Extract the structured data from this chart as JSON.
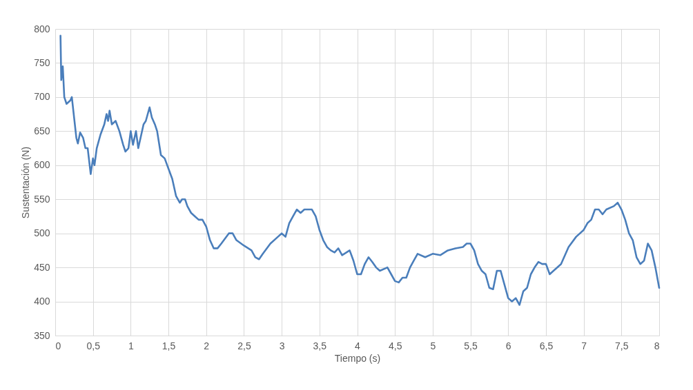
{
  "chart_data": {
    "type": "line",
    "xlabel": "Tiempo (s)",
    "ylabel": "Sustentación (N)",
    "xlim": [
      0,
      8
    ],
    "ylim": [
      350,
      800
    ],
    "xticks": [
      0,
      {
        "value": 0.5,
        "label": "0,5"
      },
      1,
      {
        "value": 1.5,
        "label": "1,5"
      },
      2,
      {
        "value": 2.5,
        "label": "2,5"
      },
      3,
      {
        "value": 3.5,
        "label": "3,5"
      },
      4,
      {
        "value": 4.5,
        "label": "4,5"
      },
      5,
      {
        "value": 5.5,
        "label": "5,5"
      },
      6,
      {
        "value": 6.5,
        "label": "6,5"
      },
      7,
      {
        "value": 7.5,
        "label": "7,5"
      },
      8
    ],
    "yticks": [
      350,
      400,
      450,
      500,
      550,
      600,
      650,
      700,
      750,
      800
    ],
    "grid": true,
    "marker": "none",
    "line_style": "solid",
    "x": [
      0.07,
      0.08,
      0.1,
      0.12,
      0.15,
      0.2,
      0.22,
      0.25,
      0.28,
      0.3,
      0.33,
      0.37,
      0.4,
      0.43,
      0.47,
      0.5,
      0.52,
      0.55,
      0.6,
      0.65,
      0.68,
      0.7,
      0.72,
      0.75,
      0.8,
      0.85,
      0.9,
      0.93,
      0.97,
      1.0,
      1.03,
      1.07,
      1.1,
      1.13,
      1.17,
      1.2,
      1.25,
      1.28,
      1.32,
      1.35,
      1.4,
      1.45,
      1.5,
      1.55,
      1.6,
      1.65,
      1.68,
      1.72,
      1.75,
      1.8,
      1.85,
      1.9,
      1.95,
      2.0,
      2.05,
      2.1,
      2.15,
      2.2,
      2.3,
      2.35,
      2.4,
      2.5,
      2.6,
      2.65,
      2.7,
      2.75,
      2.85,
      2.95,
      3.0,
      3.05,
      3.1,
      3.15,
      3.2,
      3.25,
      3.3,
      3.4,
      3.45,
      3.5,
      3.55,
      3.6,
      3.65,
      3.7,
      3.75,
      3.8,
      3.9,
      3.95,
      4.0,
      4.05,
      4.1,
      4.15,
      4.2,
      4.25,
      4.3,
      4.4,
      4.45,
      4.5,
      4.55,
      4.6,
      4.65,
      4.7,
      4.75,
      4.8,
      4.9,
      5.0,
      5.1,
      5.2,
      5.3,
      5.4,
      5.45,
      5.5,
      5.55,
      5.6,
      5.65,
      5.7,
      5.75,
      5.8,
      5.85,
      5.9,
      5.95,
      6.0,
      6.05,
      6.1,
      6.15,
      6.2,
      6.25,
      6.3,
      6.35,
      6.4,
      6.45,
      6.5,
      6.55,
      6.6,
      6.7,
      6.8,
      6.9,
      7.0,
      7.05,
      7.1,
      7.15,
      7.2,
      7.25,
      7.3,
      7.4,
      7.45,
      7.5,
      7.55,
      7.6,
      7.65,
      7.7,
      7.75,
      7.8,
      7.85,
      7.9,
      7.95,
      8.0
    ],
    "series": [
      {
        "color": "#4a7ebb",
        "values": [
          790,
          725,
          745,
          700,
          690,
          695,
          700,
          670,
          640,
          632,
          648,
          640,
          625,
          625,
          587,
          610,
          600,
          625,
          645,
          660,
          675,
          665,
          680,
          660,
          665,
          650,
          630,
          620,
          625,
          650,
          630,
          650,
          625,
          640,
          660,
          665,
          685,
          670,
          660,
          650,
          615,
          610,
          595,
          580,
          555,
          545,
          550,
          550,
          540,
          530,
          525,
          520,
          520,
          510,
          490,
          478,
          478,
          485,
          500,
          500,
          490,
          482,
          475,
          465,
          462,
          470,
          485,
          495,
          500,
          495,
          515,
          525,
          535,
          530,
          535,
          535,
          525,
          505,
          490,
          480,
          475,
          472,
          478,
          468,
          475,
          460,
          440,
          440,
          455,
          465,
          458,
          450,
          445,
          450,
          440,
          430,
          428,
          435,
          435,
          450,
          460,
          470,
          465,
          470,
          468,
          475,
          478,
          480,
          485,
          485,
          475,
          455,
          445,
          440,
          420,
          418,
          445,
          445,
          425,
          405,
          400,
          405,
          395,
          415,
          420,
          440,
          450,
          458,
          455,
          455,
          440,
          445,
          455,
          480,
          495,
          505,
          515,
          520,
          535,
          535,
          528,
          535,
          540,
          545,
          535,
          520,
          500,
          490,
          465,
          455,
          460,
          485,
          475,
          450,
          420
        ]
      }
    ]
  }
}
